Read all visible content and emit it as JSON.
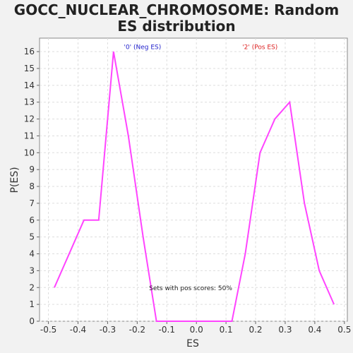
{
  "chart_data": {
    "type": "line",
    "title_line1": "GOCC_NUCLEAR_CHROMOSOME: Random",
    "title_line2": "ES distribution",
    "xlabel": "ES",
    "ylabel": "P(ES)",
    "xlim": [
      -0.53,
      0.51
    ],
    "ylim": [
      0,
      16.8
    ],
    "x_ticks": [
      "-0.5",
      "-0.4",
      "-0.3",
      "-0.2",
      "-0.1",
      "0.0",
      "0.1",
      "0.2",
      "0.3",
      "0.4",
      "0.5"
    ],
    "y_ticks": [
      "0",
      "1",
      "2",
      "3",
      "4",
      "5",
      "6",
      "7",
      "8",
      "9",
      "10",
      "11",
      "12",
      "13",
      "14",
      "15",
      "16"
    ],
    "grid": true,
    "line_color": "#ff44ff",
    "series": [
      {
        "x": [
          -0.48,
          -0.38,
          -0.33,
          -0.28,
          -0.23,
          -0.18,
          -0.135,
          -0.1,
          0.0,
          0.1,
          0.12,
          0.165,
          0.215,
          0.265,
          0.315,
          0.365,
          0.415,
          0.465
        ],
        "y": [
          2,
          6,
          6,
          16,
          11,
          5,
          0,
          0,
          0,
          0,
          0,
          4,
          10,
          12,
          13,
          7,
          3,
          1
        ]
      }
    ],
    "annotations": [
      {
        "text": "'0' (Neg ES)",
        "color": "#2222cc",
        "x": -0.245,
        "y": 16.15
      },
      {
        "text": "'2' (Pos ES)",
        "color": "#dd2222",
        "x": 0.155,
        "y": 16.15
      },
      {
        "text": "Sets with pos scores: 50%",
        "color": "#222222",
        "x": -0.16,
        "y": 1.85
      }
    ]
  }
}
